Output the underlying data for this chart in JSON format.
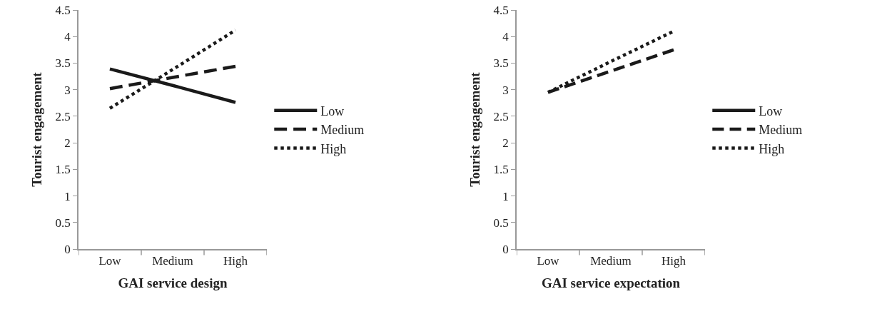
{
  "chart_data": [
    {
      "type": "line",
      "xlabel": "GAI service design",
      "ylabel": "Tourist engagement",
      "categories": [
        "Low",
        "Medium",
        "High"
      ],
      "ylim": [
        0,
        4.5
      ],
      "yticks": [
        0,
        0.5,
        1,
        1.5,
        2,
        2.5,
        3,
        3.5,
        4,
        4.5
      ],
      "grid": false,
      "legend": "right",
      "marker": "none",
      "series": [
        {
          "name": "Low",
          "color": "#1a1a1a",
          "line_style": "solid",
          "values": [
            3.39,
            3.08,
            2.76
          ]
        },
        {
          "name": "Medium",
          "color": "#1a1a1a",
          "line_style": "dashed",
          "values": [
            3.02,
            3.23,
            3.44
          ]
        },
        {
          "name": "High",
          "color": "#1a1a1a",
          "line_style": "dotted",
          "values": [
            2.65,
            3.38,
            4.12
          ]
        }
      ]
    },
    {
      "type": "line",
      "xlabel": "GAI service expectation",
      "ylabel": "Tourist engagement",
      "categories": [
        "Low",
        "Medium",
        "High"
      ],
      "ylim": [
        0,
        4.5
      ],
      "yticks": [
        0,
        0.5,
        1,
        1.5,
        2,
        2.5,
        3,
        3.5,
        4,
        4.5
      ],
      "grid": false,
      "legend": "right",
      "marker": "none",
      "series": [
        {
          "name": "Low",
          "color": "#1a1a1a",
          "line_style": "solid",
          "values": [
            null,
            null,
            null
          ]
        },
        {
          "name": "Medium",
          "color": "#1a1a1a",
          "line_style": "dashed",
          "values": [
            2.95,
            3.35,
            3.75
          ]
        },
        {
          "name": "High",
          "color": "#1a1a1a",
          "line_style": "dotted",
          "values": [
            2.95,
            3.53,
            4.1
          ]
        }
      ]
    }
  ]
}
